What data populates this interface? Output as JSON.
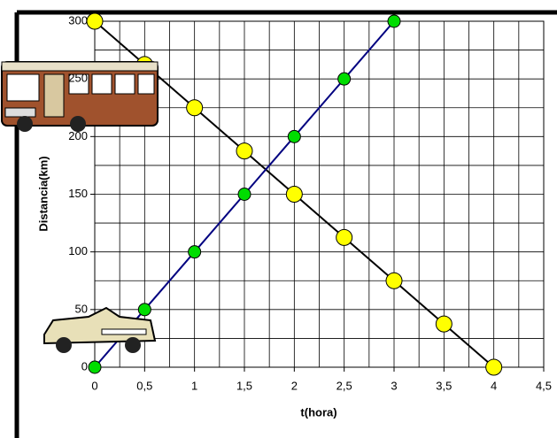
{
  "chart_data": {
    "type": "line",
    "x_label": "t(hora)",
    "y_label": "Distancia(km)",
    "x": [
      0,
      0.5,
      1,
      1.5,
      2,
      2.5,
      3,
      3.5,
      4
    ],
    "series": [
      {
        "color": "#ffff00",
        "line_color": "#000000",
        "values": [
          300,
          262.5,
          225,
          187.5,
          150,
          112.5,
          75,
          37.5,
          0
        ]
      },
      {
        "color": "#00dd00",
        "line_color": "#000080",
        "values": [
          0,
          50,
          100,
          150,
          200,
          250,
          300,
          null,
          null
        ]
      }
    ],
    "xlim": [
      0,
      4.5
    ],
    "xticks": [
      0,
      {
        "value": 0.5,
        "label": "0,5"
      },
      1,
      {
        "value": 1.5,
        "label": "1,5"
      },
      2,
      {
        "value": 2.5,
        "label": "2,5"
      },
      3,
      {
        "value": 3.5,
        "label": "3,5"
      },
      4,
      {
        "value": 4.5,
        "label": "4,5"
      }
    ],
    "ylim": [
      0,
      300
    ],
    "yticks": [
      0,
      50,
      100,
      150,
      200,
      250,
      300
    ],
    "grid": true
  }
}
